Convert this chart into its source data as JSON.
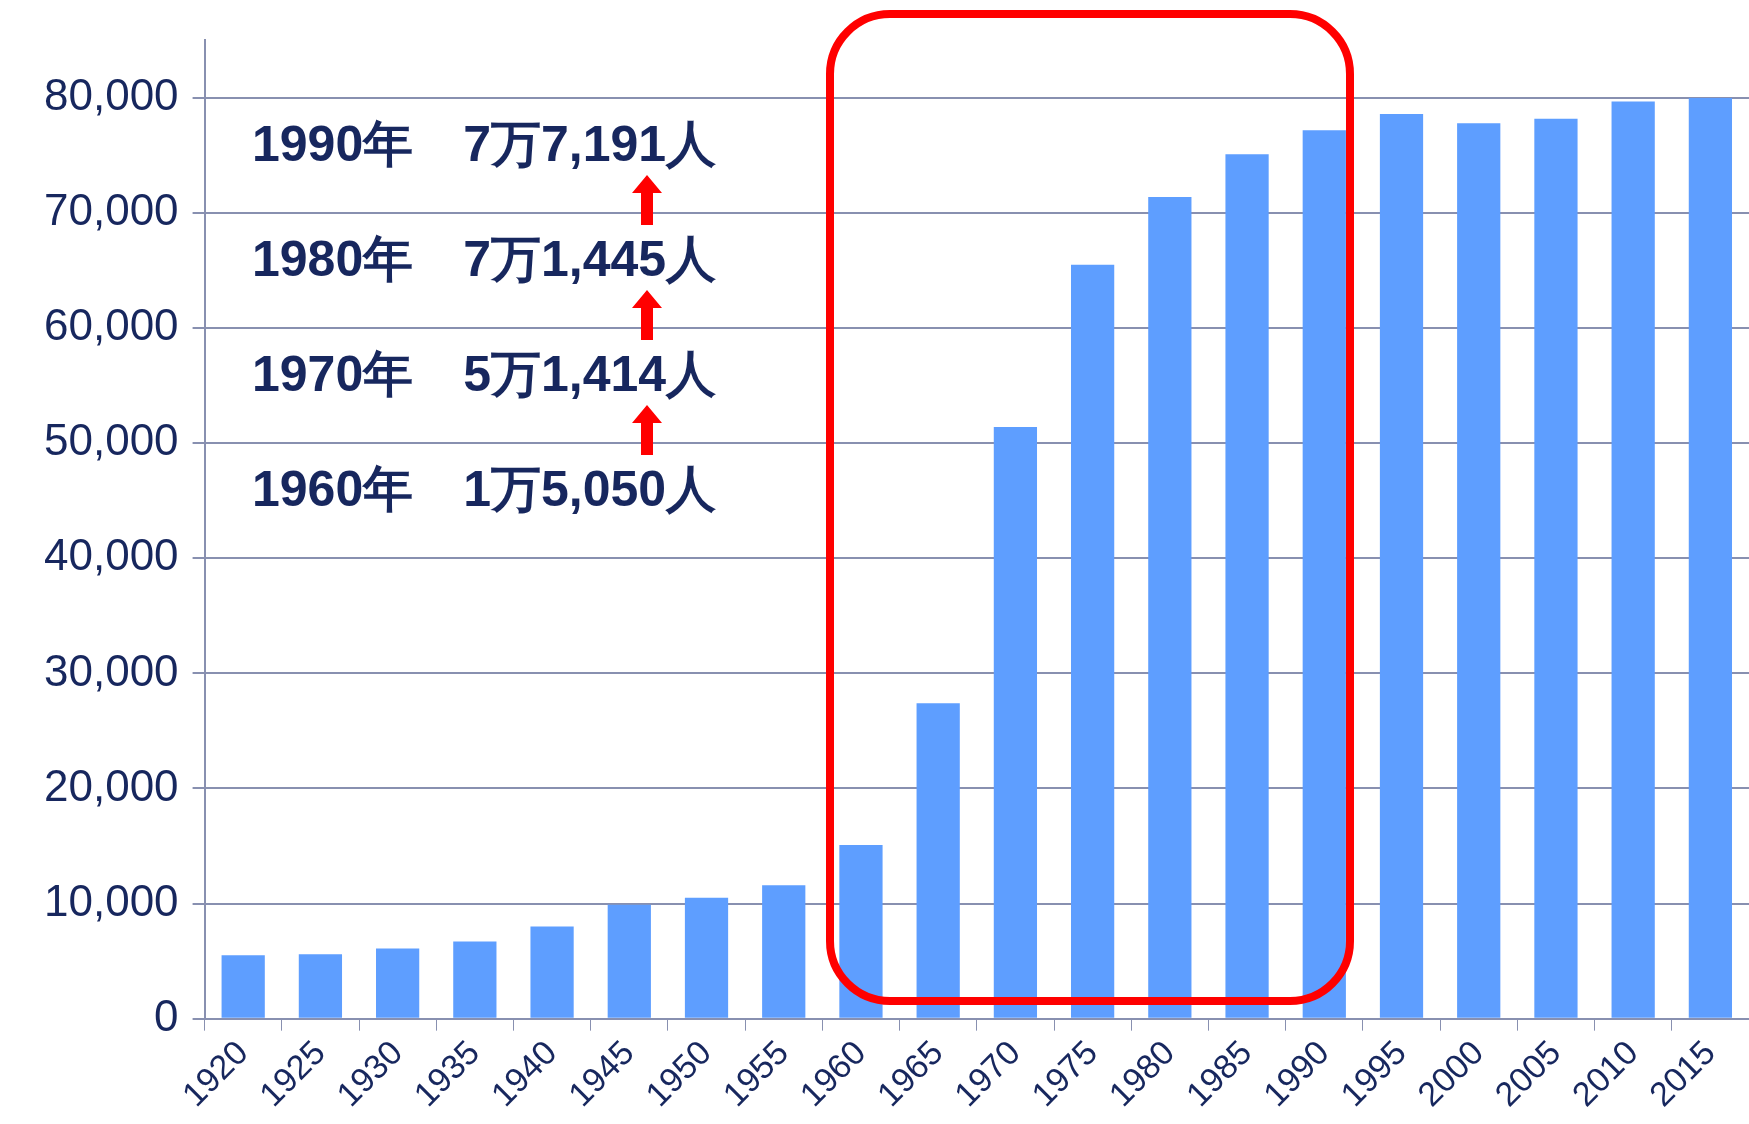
{
  "chart_data": {
    "type": "bar",
    "categories": [
      "1920",
      "1925",
      "1930",
      "1935",
      "1940",
      "1945",
      "1950",
      "1955",
      "1960",
      "1965",
      "1970",
      "1975",
      "1980",
      "1985",
      "1990",
      "1995",
      "2000",
      "2005",
      "2010",
      "2015"
    ],
    "values": [
      5500,
      5600,
      6100,
      6700,
      8000,
      9900,
      10500,
      11600,
      15100,
      27400,
      51400,
      65500,
      71400,
      75100,
      77200,
      78600,
      77800,
      78200,
      79700,
      80000
    ],
    "color": "#5e9eff",
    "ylim": [
      0,
      85000
    ],
    "yticks": [
      {
        "value": 0,
        "label": "0"
      },
      {
        "value": 10000,
        "label": "10,000"
      },
      {
        "value": 20000,
        "label": "20,000"
      },
      {
        "value": 30000,
        "label": "30,000"
      },
      {
        "value": 40000,
        "label": "40,000"
      },
      {
        "value": 50000,
        "label": "50,000"
      },
      {
        "value": 60000,
        "label": "60,000"
      },
      {
        "value": 70000,
        "label": "70,000"
      },
      {
        "value": 80000,
        "label": "80,000"
      }
    ],
    "grid": "y",
    "legend": false,
    "annotations": [
      "1990年　7万7,191人",
      "1980年　7万1,445人",
      "1970年　5万1,414人",
      "1960年　1万5,050人"
    ]
  }
}
